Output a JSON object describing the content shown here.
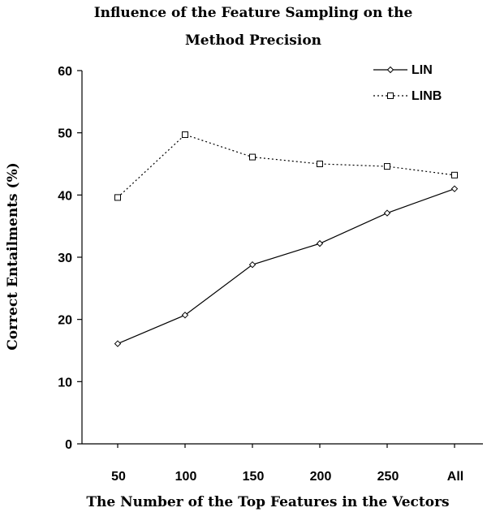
{
  "chart_data": {
    "type": "line",
    "title": [
      "Influence of the Feature Sampling on the",
      "Method Precision"
    ],
    "xlabel": "The Number of the Top Features in the Vectors",
    "ylabel": "Correct Entailments (%)",
    "categories": [
      "50",
      "100",
      "150",
      "200",
      "250",
      "All"
    ],
    "ylim": [
      0,
      60
    ],
    "yticks": [
      "0",
      "10",
      "20",
      "30",
      "40",
      "50",
      "60"
    ],
    "grid": false,
    "legend_position": "top-right",
    "series": [
      {
        "name": "LIN",
        "values": [
          16.1,
          20.7,
          28.8,
          32.2,
          37.1,
          41.0
        ],
        "marker": "diamond",
        "line": "solid",
        "color": "#000000"
      },
      {
        "name": "LINB",
        "values": [
          39.6,
          49.7,
          46.1,
          45.0,
          44.6,
          43.2
        ],
        "marker": "square",
        "line": "dotted",
        "color": "#000000"
      }
    ]
  }
}
